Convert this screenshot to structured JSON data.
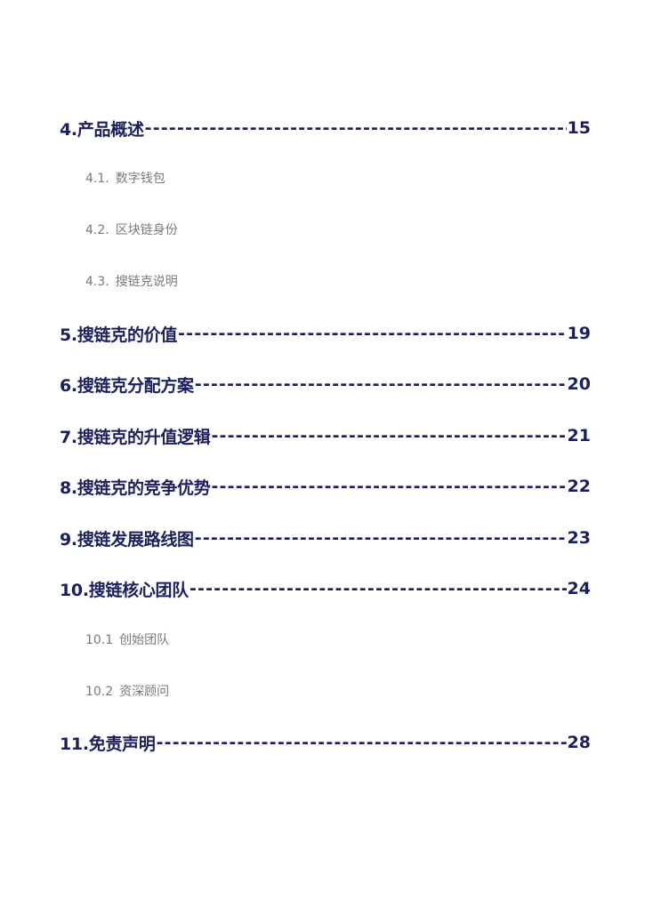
{
  "toc": {
    "entries": [
      {
        "title": "4.产品概述",
        "page": "15"
      },
      {
        "title": "5.搜链克的价值 ",
        "page": "19"
      },
      {
        "title": "6.搜链克分配方案",
        "page": "20"
      },
      {
        "title": "7.搜链克的升值逻辑",
        "page": "21"
      },
      {
        "title": "8.搜链克的竞争优势",
        "page": "22"
      },
      {
        "title": "9.搜链发展路线图",
        "page": "23"
      },
      {
        "title": "10.搜链核心团队",
        "page": "24"
      },
      {
        "title": "11.免责声明",
        "page": "28"
      }
    ],
    "subentries": [
      {
        "num": "4.1.",
        "title": "数字钱包"
      },
      {
        "num": "4.2.",
        "title": "区块链身份"
      },
      {
        "num": "4.3.",
        "title": "搜链克说明"
      },
      {
        "num": "10.1",
        "title": "创始团队"
      },
      {
        "num": "10.2",
        "title": "资深顾问"
      }
    ],
    "leader": "-------------------------------------------------------------------------------------------------------------------"
  }
}
